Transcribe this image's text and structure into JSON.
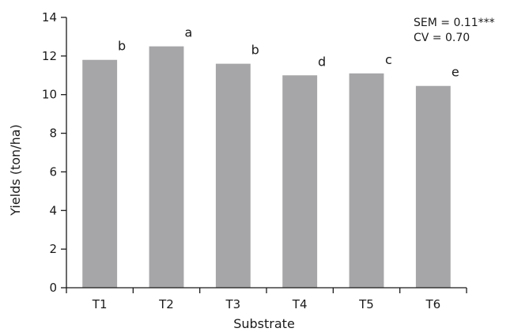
{
  "chart_data": {
    "type": "bar",
    "title": "",
    "xlabel": "Substrate",
    "ylabel": "Yields (ton/ha)",
    "categories": [
      "T1",
      "T2",
      "T3",
      "T4",
      "T5",
      "T6"
    ],
    "values": [
      11.8,
      12.5,
      11.6,
      11.0,
      11.1,
      10.45
    ],
    "significance_letters": [
      "b",
      "a",
      "b",
      "d",
      "c",
      "e"
    ],
    "ylim": [
      0,
      14
    ],
    "yticks": [
      0,
      2,
      4,
      6,
      8,
      10,
      12,
      14
    ],
    "grid": false,
    "legend": null,
    "bar_color": "#a6a6a8",
    "annotations": [
      "SEM = 0.11***",
      "CV = 0.70"
    ]
  }
}
